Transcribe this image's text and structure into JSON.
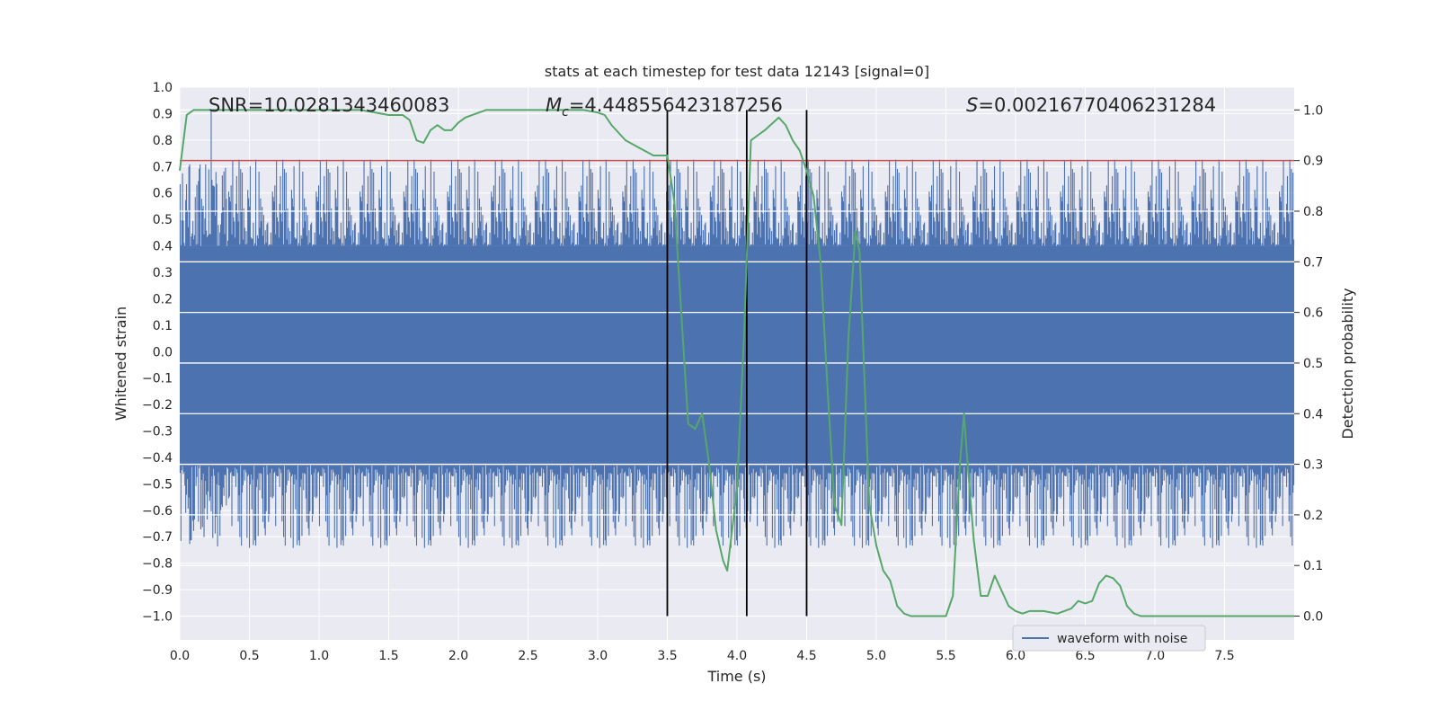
{
  "chart_data": {
    "type": "line",
    "title": "stats at each timestep for test data 12143 [signal=0]",
    "xlabel": "Time (s)",
    "ylabel": "Whitened strain",
    "y2label": "Detection probability",
    "xlim": [
      0.0,
      8.0
    ],
    "ylim": [
      -1.09,
      1.0
    ],
    "y2lim": [
      -0.047,
      1.045
    ],
    "xticks": [
      0.0,
      0.5,
      1.0,
      1.5,
      2.0,
      2.5,
      3.0,
      3.5,
      4.0,
      4.5,
      5.0,
      5.5,
      6.0,
      6.5,
      7.0,
      7.5
    ],
    "xtick_labels": [
      "0.0",
      "0.5",
      "1.0",
      "1.5",
      "2.0",
      "2.5",
      "3.0",
      "3.5",
      "4.0",
      "4.5",
      "5.0",
      "5.5",
      "6.0",
      "6.5",
      "7.0",
      "7.5"
    ],
    "yticks": [
      1.0,
      0.9,
      0.8,
      0.7,
      0.6,
      0.5,
      0.4,
      0.3,
      0.2,
      0.1,
      0.0,
      -0.1,
      -0.2,
      -0.3,
      -0.4,
      -0.5,
      -0.6,
      -0.7,
      -0.8,
      -0.9,
      -1.0
    ],
    "ytick_labels": [
      "1.0",
      "0.9",
      "0.8",
      "0.7",
      "0.6",
      "0.5",
      "0.4",
      "0.3",
      "0.2",
      "0.1",
      "0.0",
      "−0.1",
      "−0.2",
      "−0.3",
      "−0.4",
      "−0.5",
      "−0.6",
      "−0.7",
      "−0.8",
      "−0.9",
      "−1.0"
    ],
    "y2ticks": [
      1.0,
      0.9,
      0.8,
      0.7,
      0.6,
      0.5,
      0.4,
      0.3,
      0.2,
      0.1,
      0.0
    ],
    "y2tick_labels": [
      "1.0",
      "0.9",
      "0.8",
      "0.7",
      "0.6",
      "0.5",
      "0.4",
      "0.3",
      "0.2",
      "0.1",
      "0.0"
    ],
    "annotations": {
      "snr": "SNR=10.0281343460083",
      "mc_prefix": "M",
      "mc_sub": "c",
      "mc_value": "=4.448556423187256",
      "s_prefix": "S",
      "s_value": "=0.00216770406231284"
    },
    "threshold_y2": 0.9,
    "vertical_lines_x": [
      3.5,
      4.07,
      4.5
    ],
    "noise_band_y": [
      -0.43,
      0.4
    ],
    "series": [
      {
        "name": "Detection probability",
        "axis": "right",
        "x": [
          0.0,
          0.05,
          0.1,
          0.2,
          0.3,
          0.5,
          0.7,
          0.9,
          1.0,
          1.1,
          1.2,
          1.3,
          1.4,
          1.5,
          1.6,
          1.65,
          1.7,
          1.75,
          1.8,
          1.85,
          1.9,
          1.95,
          2.0,
          2.05,
          2.1,
          2.2,
          2.3,
          2.5,
          2.7,
          2.9,
          3.0,
          3.05,
          3.1,
          3.2,
          3.3,
          3.4,
          3.5,
          3.55,
          3.6,
          3.65,
          3.7,
          3.75,
          3.8,
          3.85,
          3.9,
          3.93,
          4.0,
          4.05,
          4.1,
          4.15,
          4.2,
          4.3,
          4.35,
          4.4,
          4.45,
          4.5,
          4.55,
          4.6,
          4.65,
          4.7,
          4.75,
          4.8,
          4.85,
          4.88,
          4.95,
          5.0,
          5.05,
          5.1,
          5.15,
          5.2,
          5.25,
          5.3,
          5.4,
          5.5,
          5.55,
          5.6,
          5.63,
          5.65,
          5.7,
          5.75,
          5.8,
          5.85,
          5.9,
          5.95,
          6.0,
          6.05,
          6.1,
          6.2,
          6.3,
          6.35,
          6.4,
          6.45,
          6.5,
          6.55,
          6.6,
          6.65,
          6.7,
          6.75,
          6.8,
          6.85,
          6.9,
          7.0,
          7.2,
          7.5,
          7.8,
          8.0
        ],
        "y": [
          0.88,
          0.99,
          1.0,
          1.0,
          1.0,
          1.0,
          1.0,
          1.0,
          1.0,
          1.0,
          1.0,
          1.0,
          0.995,
          0.99,
          0.99,
          0.98,
          0.94,
          0.935,
          0.96,
          0.97,
          0.96,
          0.96,
          0.975,
          0.985,
          0.99,
          1.0,
          1.0,
          1.0,
          1.0,
          1.0,
          0.995,
          0.99,
          0.97,
          0.94,
          0.925,
          0.91,
          0.91,
          0.82,
          0.6,
          0.38,
          0.37,
          0.4,
          0.3,
          0.17,
          0.11,
          0.09,
          0.25,
          0.55,
          0.94,
          0.95,
          0.96,
          0.985,
          0.97,
          0.94,
          0.92,
          0.88,
          0.83,
          0.7,
          0.45,
          0.22,
          0.18,
          0.55,
          0.76,
          0.72,
          0.22,
          0.14,
          0.09,
          0.07,
          0.02,
          0.005,
          0.0,
          0.0,
          0.0,
          0.0,
          0.04,
          0.3,
          0.4,
          0.32,
          0.15,
          0.04,
          0.04,
          0.08,
          0.05,
          0.02,
          0.01,
          0.005,
          0.01,
          0.01,
          0.005,
          0.01,
          0.015,
          0.03,
          0.025,
          0.03,
          0.065,
          0.08,
          0.075,
          0.06,
          0.02,
          0.005,
          0.0,
          0.0,
          0.0,
          0.0,
          0.0,
          0.0
        ]
      }
    ],
    "legend": {
      "location": "lower-right",
      "entries": [
        "waveform with noise"
      ]
    },
    "colors": {
      "background": "#eaeaf2",
      "grid": "#ffffff",
      "waveform": "#4c72b0",
      "probability": "#55a868",
      "threshold": "#c44e52",
      "vline": "#000000"
    }
  }
}
